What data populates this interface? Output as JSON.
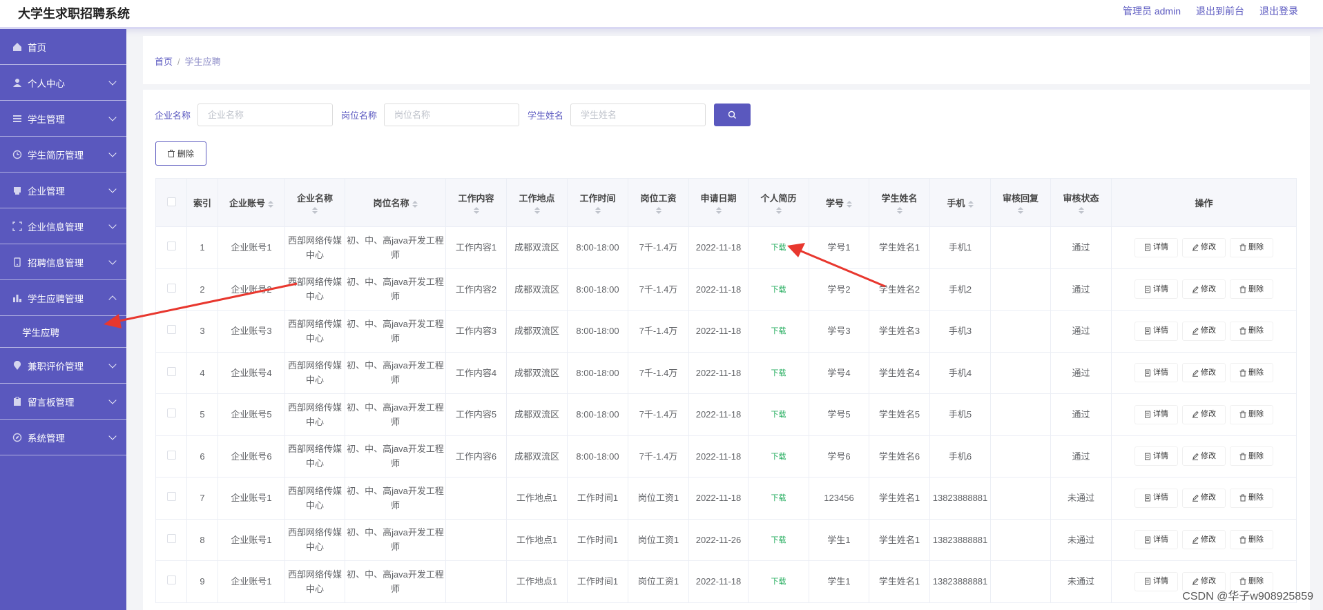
{
  "header": {
    "title": "大学生求职招聘系统",
    "user": "管理员 admin",
    "front": "退出到前台",
    "logout": "退出登录"
  },
  "sidebar": {
    "items": [
      {
        "label": "首页",
        "icon": "home-icon",
        "chevron": false
      },
      {
        "label": "个人中心",
        "icon": "user-icon",
        "chevron": true
      },
      {
        "label": "学生管理",
        "icon": "list-icon",
        "chevron": true
      },
      {
        "label": "学生简历管理",
        "icon": "clock-icon",
        "chevron": true
      },
      {
        "label": "企业管理",
        "icon": "building-icon",
        "chevron": true
      },
      {
        "label": "企业信息管理",
        "icon": "expand-icon",
        "chevron": true
      },
      {
        "label": "招聘信息管理",
        "icon": "phone-icon",
        "chevron": true
      },
      {
        "label": "学生应聘管理",
        "icon": "chart-icon",
        "chevron": true,
        "open": true
      },
      {
        "label": "兼职评价管理",
        "icon": "location-icon",
        "chevron": true
      },
      {
        "label": "留言板管理",
        "icon": "clipboard-icon",
        "chevron": true
      },
      {
        "label": "系统管理",
        "icon": "compass-icon",
        "chevron": true
      }
    ],
    "sub_item": "学生应聘"
  },
  "breadcrumb": {
    "home": "首页",
    "sep": "/",
    "current": "学生应聘"
  },
  "search": {
    "company_label": "企业名称",
    "company_placeholder": "企业名称",
    "job_label": "岗位名称",
    "job_placeholder": "岗位名称",
    "student_label": "学生姓名",
    "student_placeholder": "学生姓名"
  },
  "delete_label": "删除",
  "table": {
    "columns": [
      "索引",
      "企业账号",
      "企业名称",
      "岗位名称",
      "工作内容",
      "工作地点",
      "工作时间",
      "岗位工资",
      "申请日期",
      "个人简历",
      "学号",
      "学生姓名",
      "手机",
      "审核回复",
      "审核状态",
      "操作"
    ],
    "download_label": "下载",
    "actions": [
      "详情",
      "修改",
      "删除"
    ],
    "rows": [
      {
        "idx": "1",
        "acct": "企业账号1",
        "company": "西部网络传媒中心",
        "job": "初、中、高java开发工程师",
        "content": "工作内容1",
        "place": "成都双流区",
        "time": "8:00-18:00",
        "pay": "7千-1.4万",
        "date": "2022-11-18",
        "sno": "学号1",
        "name": "学生姓名1",
        "phone": "手机1",
        "reply": "",
        "status": "通过"
      },
      {
        "idx": "2",
        "acct": "企业账号2",
        "company": "西部网络传媒中心",
        "job": "初、中、高java开发工程师",
        "content": "工作内容2",
        "place": "成都双流区",
        "time": "8:00-18:00",
        "pay": "7千-1.4万",
        "date": "2022-11-18",
        "sno": "学号2",
        "name": "学生姓名2",
        "phone": "手机2",
        "reply": "",
        "status": "通过"
      },
      {
        "idx": "3",
        "acct": "企业账号3",
        "company": "西部网络传媒中心",
        "job": "初、中、高java开发工程师",
        "content": "工作内容3",
        "place": "成都双流区",
        "time": "8:00-18:00",
        "pay": "7千-1.4万",
        "date": "2022-11-18",
        "sno": "学号3",
        "name": "学生姓名3",
        "phone": "手机3",
        "reply": "",
        "status": "通过"
      },
      {
        "idx": "4",
        "acct": "企业账号4",
        "company": "西部网络传媒中心",
        "job": "初、中、高java开发工程师",
        "content": "工作内容4",
        "place": "成都双流区",
        "time": "8:00-18:00",
        "pay": "7千-1.4万",
        "date": "2022-11-18",
        "sno": "学号4",
        "name": "学生姓名4",
        "phone": "手机4",
        "reply": "",
        "status": "通过"
      },
      {
        "idx": "5",
        "acct": "企业账号5",
        "company": "西部网络传媒中心",
        "job": "初、中、高java开发工程师",
        "content": "工作内容5",
        "place": "成都双流区",
        "time": "8:00-18:00",
        "pay": "7千-1.4万",
        "date": "2022-11-18",
        "sno": "学号5",
        "name": "学生姓名5",
        "phone": "手机5",
        "reply": "",
        "status": "通过"
      },
      {
        "idx": "6",
        "acct": "企业账号6",
        "company": "西部网络传媒中心",
        "job": "初、中、高java开发工程师",
        "content": "工作内容6",
        "place": "成都双流区",
        "time": "8:00-18:00",
        "pay": "7千-1.4万",
        "date": "2022-11-18",
        "sno": "学号6",
        "name": "学生姓名6",
        "phone": "手机6",
        "reply": "",
        "status": "通过"
      },
      {
        "idx": "7",
        "acct": "企业账号1",
        "company": "西部网络传媒中心",
        "job": "初、中、高java开发工程师",
        "content": "",
        "place": "工作地点1",
        "time": "工作时间1",
        "pay": "岗位工资1",
        "date": "2022-11-18",
        "sno": "123456",
        "name": "学生姓名1",
        "phone": "13823888881",
        "reply": "",
        "status": "未通过"
      },
      {
        "idx": "8",
        "acct": "企业账号1",
        "company": "西部网络传媒中心",
        "job": "初、中、高java开发工程师",
        "content": "",
        "place": "工作地点1",
        "time": "工作时间1",
        "pay": "岗位工资1",
        "date": "2022-11-26",
        "sno": "学生1",
        "name": "学生姓名1",
        "phone": "13823888881",
        "reply": "",
        "status": "未通过"
      },
      {
        "idx": "9",
        "acct": "企业账号1",
        "company": "西部网络传媒中心",
        "job": "初、中、高java开发工程师",
        "content": "",
        "place": "工作地点1",
        "time": "工作时间1",
        "pay": "岗位工资1",
        "date": "2022-11-18",
        "sno": "学生1",
        "name": "学生姓名1",
        "phone": "13823888881",
        "reply": "",
        "status": "未通过"
      }
    ]
  },
  "watermark": "CSDN @华子w908925859",
  "colors": {
    "primary": "#5a58be",
    "download": "#27ae60",
    "arrow": "#e8372e"
  }
}
